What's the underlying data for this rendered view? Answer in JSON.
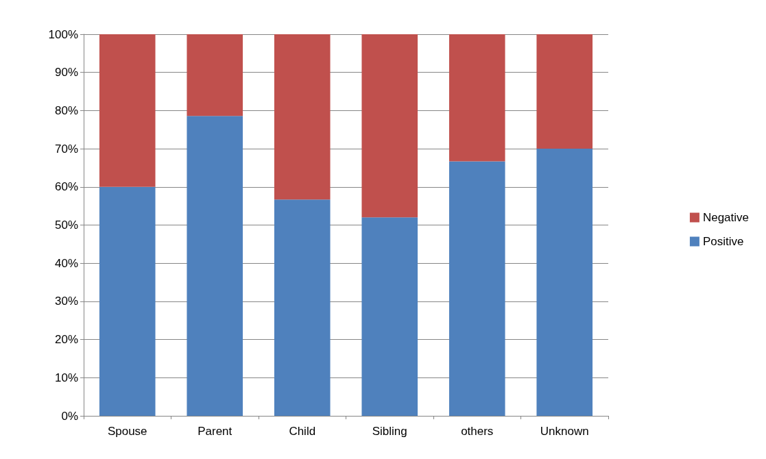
{
  "chart_data": {
    "type": "bar",
    "stacked": true,
    "categories": [
      "Spouse",
      "Parent",
      "Child",
      "Sibling",
      "others",
      "Unknown"
    ],
    "series": [
      {
        "name": "Positive",
        "color": "#4f81bd",
        "values": [
          60,
          78.6,
          56.7,
          52,
          66.7,
          70
        ]
      },
      {
        "name": "Negative",
        "color": "#c0504d",
        "values": [
          40,
          21.4,
          43.3,
          48,
          33.3,
          30
        ]
      }
    ],
    "ylim": [
      0,
      100
    ],
    "yticks": [
      {
        "value": 0,
        "label": "0%"
      },
      {
        "value": 10,
        "label": "10%"
      },
      {
        "value": 20,
        "label": "20%"
      },
      {
        "value": 30,
        "label": "30%"
      },
      {
        "value": 40,
        "label": "40%"
      },
      {
        "value": 50,
        "label": "50%"
      },
      {
        "value": 60,
        "label": "60%"
      },
      {
        "value": 70,
        "label": "70%"
      },
      {
        "value": 80,
        "label": "80%"
      },
      {
        "value": 90,
        "label": "90%"
      },
      {
        "value": 100,
        "label": "100%"
      }
    ],
    "grid": "y",
    "legend": "right"
  }
}
